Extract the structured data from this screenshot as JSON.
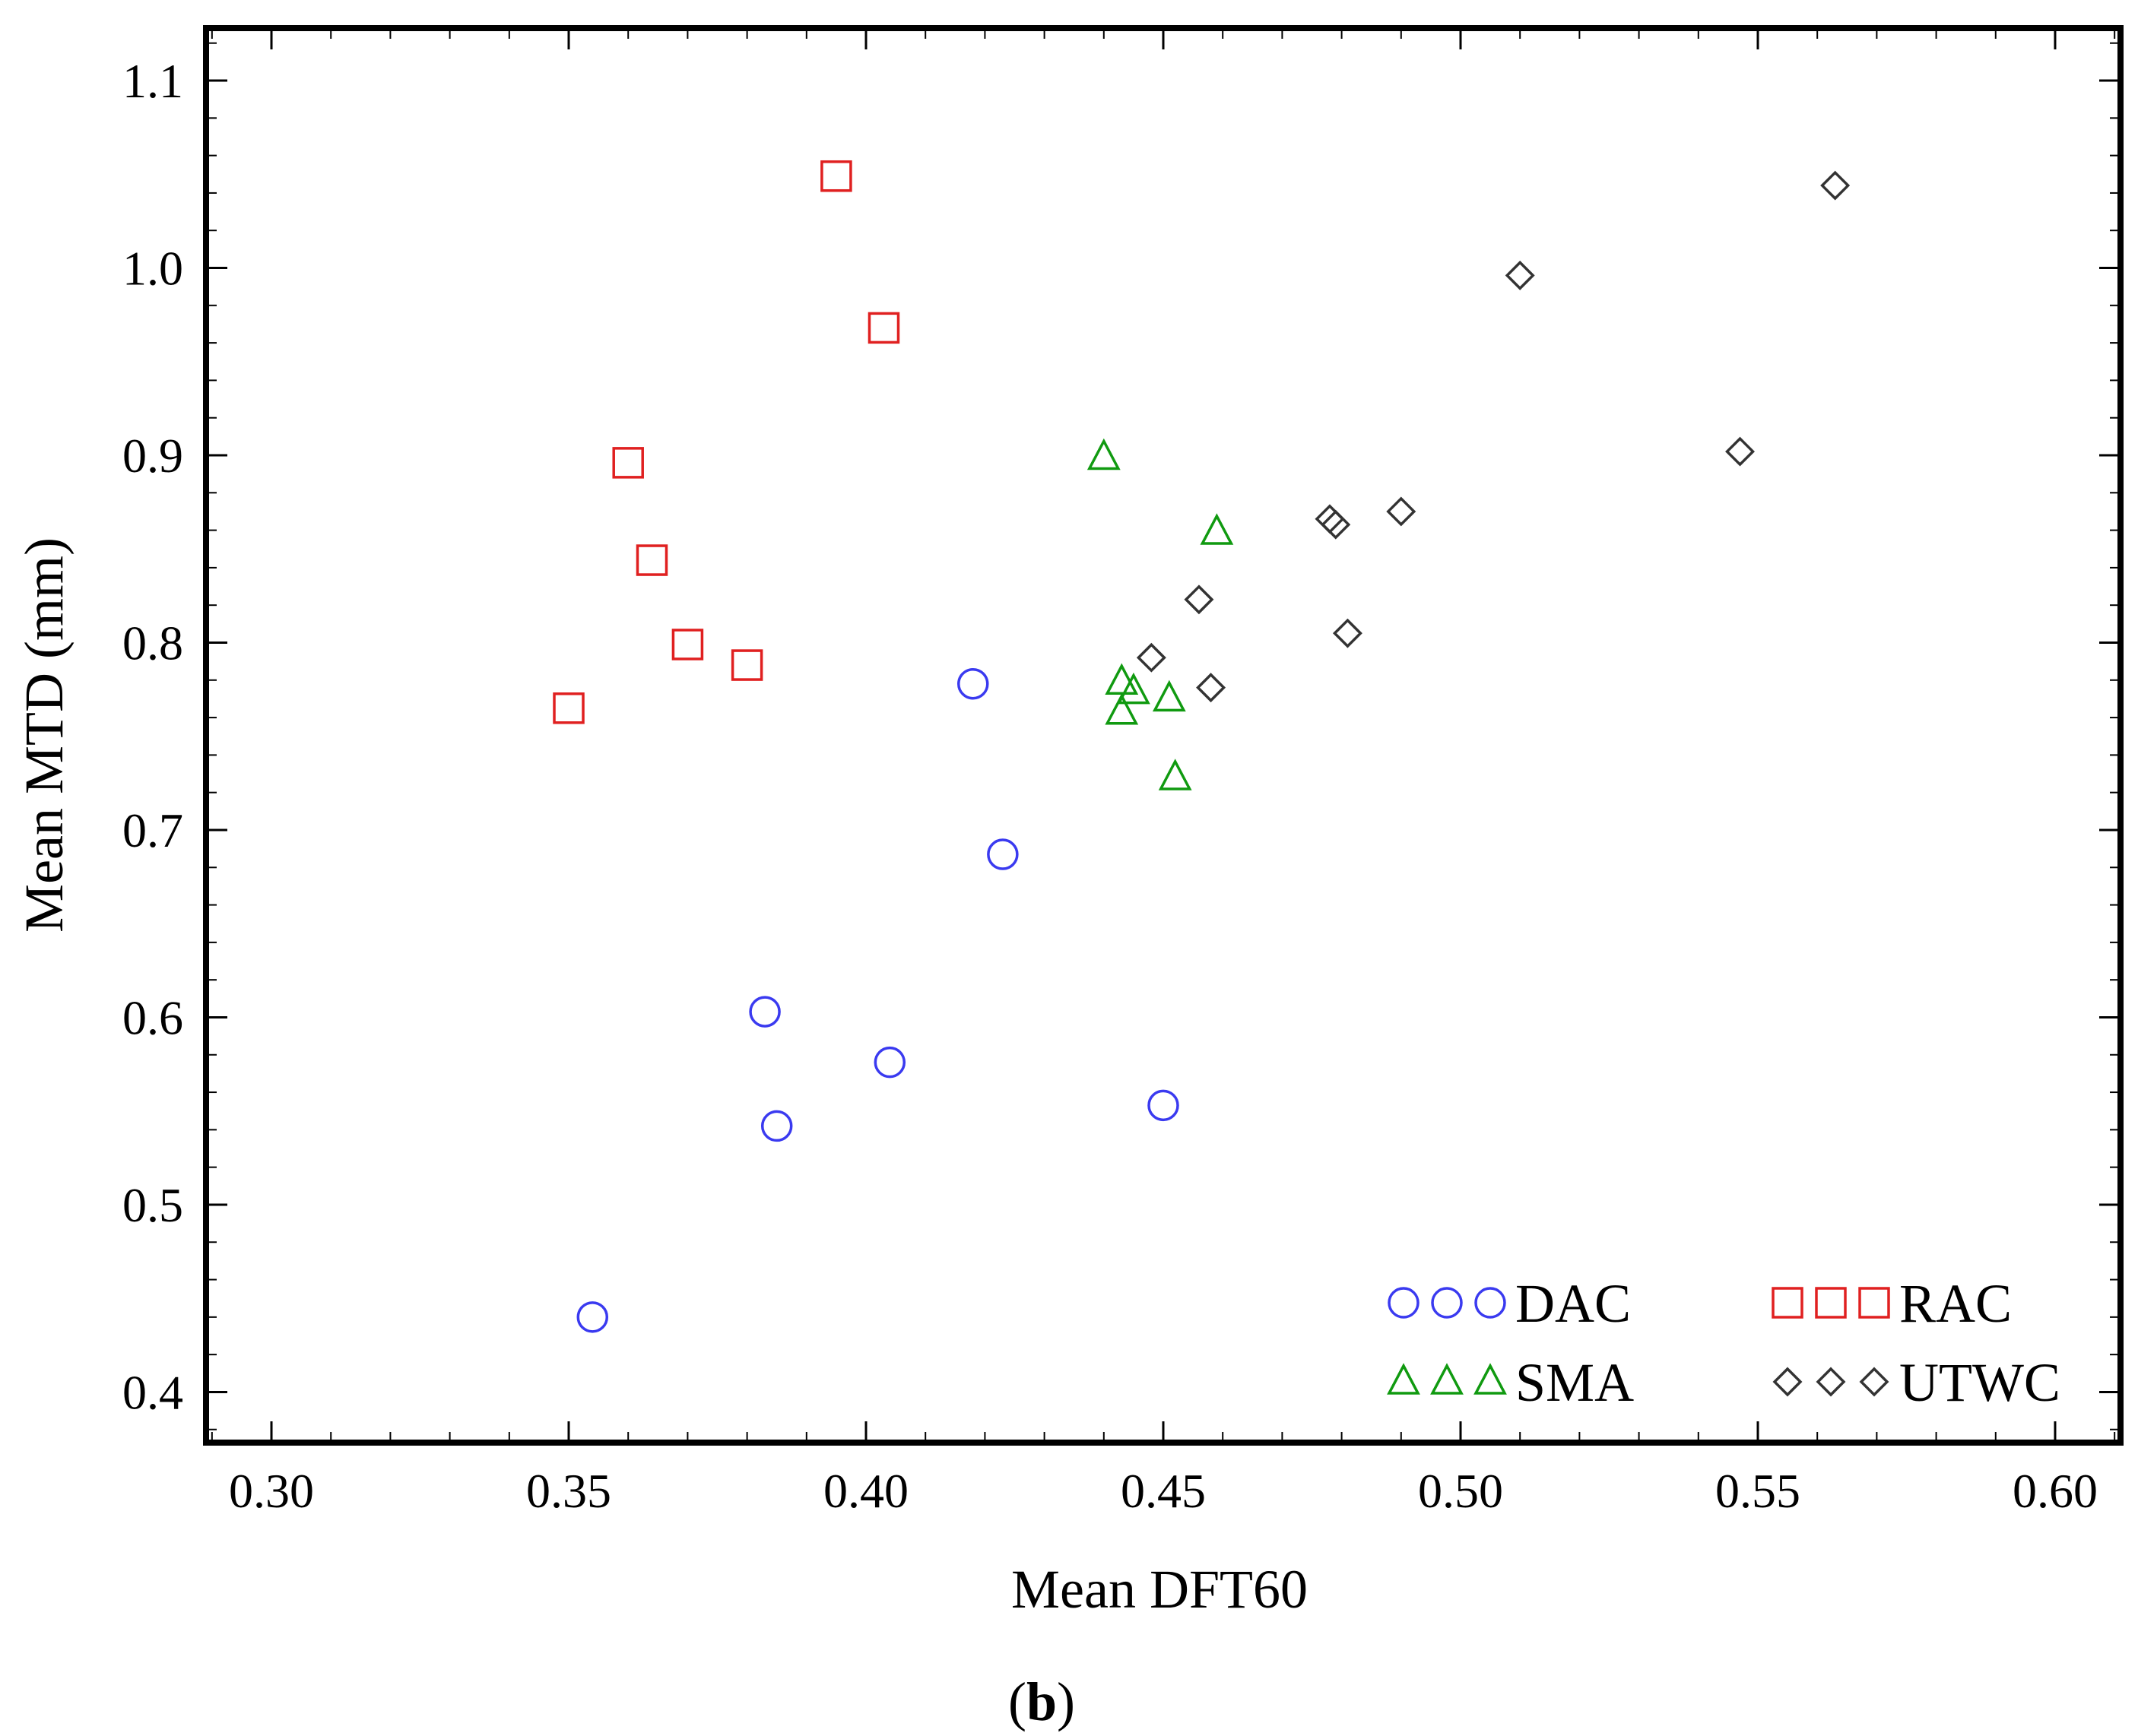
{
  "caption": {
    "open": "(",
    "letter": "b",
    "close": ")"
  },
  "chart_data": {
    "type": "scatter",
    "xlabel": "Mean DFT60",
    "ylabel": "Mean MTD (mm)",
    "xlim": [
      0.289,
      0.611
    ],
    "ylim": [
      0.373,
      1.128
    ],
    "xticks": [
      0.3,
      0.35,
      0.4,
      0.45,
      0.5,
      0.55,
      0.6
    ],
    "xtick_labels": [
      "0.30",
      "0.35",
      "0.40",
      "0.45",
      "0.50",
      "0.55",
      "0.60"
    ],
    "yticks": [
      0.4,
      0.5,
      0.6,
      0.7,
      0.8,
      0.9,
      1.0,
      1.1
    ],
    "ytick_labels": [
      "0.4",
      "0.5",
      "0.6",
      "0.7",
      "0.8",
      "0.9",
      "1.0",
      "1.1"
    ],
    "grid": false,
    "legend_position": "bottom-right",
    "series": [
      {
        "name": "DAC",
        "marker": "circle",
        "color": "#3a3af0",
        "points": [
          [
            0.354,
            0.44
          ],
          [
            0.383,
            0.603
          ],
          [
            0.385,
            0.542
          ],
          [
            0.404,
            0.576
          ],
          [
            0.418,
            0.778
          ],
          [
            0.423,
            0.687
          ],
          [
            0.45,
            0.553
          ]
        ]
      },
      {
        "name": "RAC",
        "marker": "square",
        "color": "#e02020",
        "points": [
          [
            0.35,
            0.765
          ],
          [
            0.36,
            0.896
          ],
          [
            0.364,
            0.844
          ],
          [
            0.37,
            0.799
          ],
          [
            0.38,
            0.788
          ],
          [
            0.395,
            1.049
          ],
          [
            0.403,
            0.968
          ]
        ]
      },
      {
        "name": "SMA",
        "marker": "triangle",
        "color": "#109a10",
        "points": [
          [
            0.44,
            0.899
          ],
          [
            0.443,
            0.779
          ],
          [
            0.443,
            0.763
          ],
          [
            0.445,
            0.774
          ],
          [
            0.451,
            0.77
          ],
          [
            0.452,
            0.728
          ],
          [
            0.459,
            0.859
          ]
        ]
      },
      {
        "name": "UTWC",
        "marker": "diamond",
        "color": "#333333",
        "points": [
          [
            0.448,
            0.792
          ],
          [
            0.456,
            0.823
          ],
          [
            0.458,
            0.776
          ],
          [
            0.478,
            0.866
          ],
          [
            0.479,
            0.863
          ],
          [
            0.481,
            0.805
          ],
          [
            0.49,
            0.87
          ],
          [
            0.51,
            0.996
          ],
          [
            0.547,
            0.902
          ],
          [
            0.563,
            1.044
          ]
        ]
      }
    ]
  }
}
